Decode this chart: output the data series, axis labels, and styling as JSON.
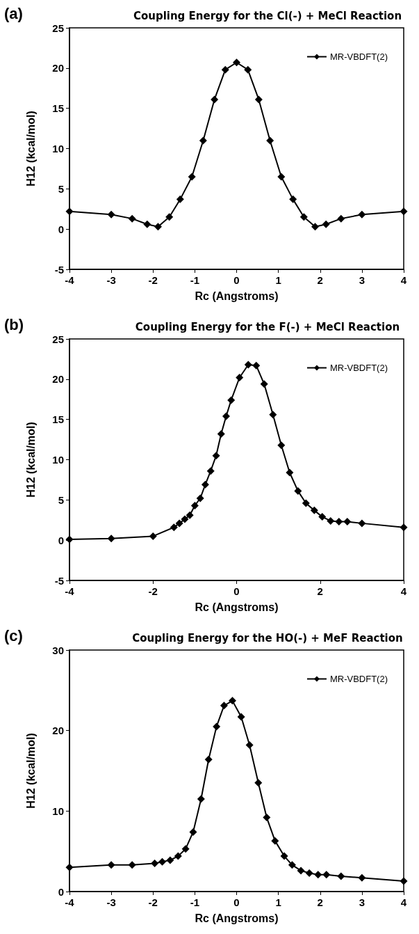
{
  "chart_data": [
    {
      "type": "line",
      "title": "Coupling Energy for the Cl(-) + MeCl Reaction",
      "xlabel": "Rc (Angstroms)",
      "ylabel": "H12 (kcal/mol)",
      "annotations": [
        "(a)"
      ],
      "x": [
        -4,
        -3,
        -2.5,
        -2.14,
        -1.88,
        -1.61,
        -1.35,
        -1.07,
        -0.8,
        -0.53,
        -0.27,
        0,
        0.27,
        0.53,
        0.8,
        1.07,
        1.35,
        1.61,
        1.88,
        2.14,
        2.5,
        3,
        4
      ],
      "series": [
        {
          "name": "MR-VBDFT(2)",
          "color": "#000000",
          "values": [
            2.2,
            1.8,
            1.3,
            0.6,
            0.3,
            1.5,
            3.7,
            6.5,
            11.0,
            16.1,
            19.8,
            20.7,
            19.8,
            16.1,
            11.0,
            6.5,
            3.7,
            1.5,
            0.3,
            0.6,
            1.3,
            1.8,
            2.2
          ]
        }
      ],
      "xlim": [
        -4,
        4
      ],
      "xticks": [
        -4,
        -3,
        -2,
        -1,
        0,
        1,
        2,
        3,
        4
      ],
      "ylim": [
        -5,
        25
      ],
      "yticks": [
        -5,
        0,
        5,
        10,
        15,
        20,
        25
      ],
      "grid": false,
      "legend": "top right",
      "marker": "diamond",
      "line_style": "solid"
    },
    {
      "type": "line",
      "title": "Coupling Energy for the F(-) + MeCl Reaction",
      "xlabel": "Rc (Angstroms)",
      "ylabel": "H12 (kcal/mol)",
      "annotations": [
        "(b)"
      ],
      "x": [
        -4,
        -3,
        -2,
        -1.5,
        -1.37,
        -1.24,
        -1.12,
        -1.0,
        -0.87,
        -0.75,
        -0.62,
        -0.49,
        -0.37,
        -0.25,
        -0.13,
        0.07,
        0.28,
        0.47,
        0.66,
        0.87,
        1.07,
        1.27,
        1.47,
        1.66,
        1.86,
        2.05,
        2.25,
        2.45,
        2.65,
        3,
        4
      ],
      "series": [
        {
          "name": "MR-VBDFT(2)",
          "color": "#000000",
          "values": [
            0.1,
            0.2,
            0.5,
            1.6,
            2.1,
            2.6,
            3.1,
            4.3,
            5.2,
            6.9,
            8.6,
            10.5,
            13.2,
            15.4,
            17.4,
            20.2,
            21.8,
            21.7,
            19.4,
            15.6,
            11.8,
            8.4,
            6.1,
            4.6,
            3.7,
            2.9,
            2.4,
            2.3,
            2.3,
            2.1,
            1.6
          ]
        }
      ],
      "xlim": [
        -4,
        4
      ],
      "xticks": [
        -4,
        -2,
        0,
        2,
        4
      ],
      "ylim": [
        -5,
        25
      ],
      "yticks": [
        -5,
        0,
        5,
        10,
        15,
        20,
        25
      ],
      "grid": false,
      "legend": "top right",
      "marker": "diamond",
      "line_style": "solid"
    },
    {
      "type": "line",
      "title": "Coupling Energy for the HO(-) + MeF Reaction",
      "xlabel": "Rc (Angstroms)",
      "ylabel": "H12 (kcal/mol)",
      "annotations": [
        "(c)"
      ],
      "x": [
        -4,
        -3,
        -2.5,
        -1.96,
        -1.78,
        -1.59,
        -1.4,
        -1.22,
        -1.04,
        -0.85,
        -0.67,
        -0.48,
        -0.3,
        -0.1,
        0.11,
        0.31,
        0.52,
        0.72,
        0.92,
        1.14,
        1.33,
        1.54,
        1.74,
        1.95,
        2.15,
        2.5,
        3,
        4
      ],
      "series": [
        {
          "name": "MR-VBDFT(2)",
          "color": "#000000",
          "values": [
            3.0,
            3.3,
            3.3,
            3.5,
            3.7,
            3.9,
            4.4,
            5.3,
            7.4,
            11.5,
            16.4,
            20.5,
            23.1,
            23.7,
            21.7,
            18.2,
            13.5,
            9.2,
            6.3,
            4.4,
            3.3,
            2.6,
            2.3,
            2.1,
            2.1,
            1.9,
            1.7,
            1.3
          ]
        }
      ],
      "xlim": [
        -4,
        4
      ],
      "xticks": [
        -4,
        -3,
        -2,
        -1,
        0,
        1,
        2,
        3,
        4
      ],
      "ylim": [
        0,
        30
      ],
      "yticks": [
        0,
        10,
        20,
        30
      ],
      "grid": false,
      "legend": "top right",
      "marker": "diamond",
      "line_style": "solid"
    }
  ]
}
